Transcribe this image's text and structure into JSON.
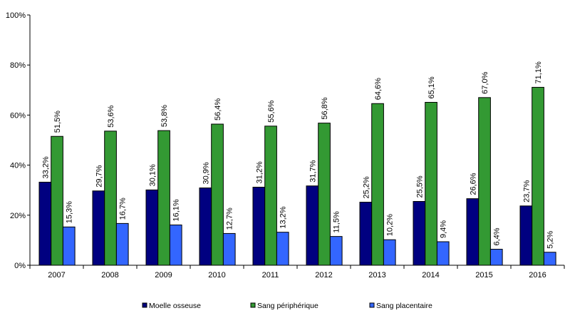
{
  "chart_data": {
    "type": "bar",
    "title": "",
    "xlabel": "",
    "ylabel": "",
    "ylim": [
      0,
      100
    ],
    "yticks": [
      "0%",
      "20%",
      "40%",
      "60%",
      "80%",
      "100%"
    ],
    "grid": false,
    "legend_position": "bottom",
    "categories": [
      "2007",
      "2008",
      "2009",
      "2010",
      "2011",
      "2012",
      "2013",
      "2014",
      "2015",
      "2016"
    ],
    "series": [
      {
        "name": "Moelle osseuse",
        "color": "#000080",
        "values": [
          33.2,
          29.7,
          30.1,
          30.9,
          31.2,
          31.7,
          25.2,
          25.5,
          26.6,
          23.7
        ],
        "labels": [
          "33,2%",
          "29,7%",
          "30,1%",
          "30,9%",
          "31,2%",
          "31,7%",
          "25,2%",
          "25,5%",
          "26,6%",
          "23,7%"
        ]
      },
      {
        "name": "Sang périphérique",
        "color": "#339933",
        "values": [
          51.5,
          53.6,
          53.8,
          56.4,
          55.6,
          56.8,
          64.6,
          65.1,
          67.0,
          71.1
        ],
        "labels": [
          "51,5%",
          "53,6%",
          "53,8%",
          "56,4%",
          "55,6%",
          "56,8%",
          "64,6%",
          "65,1%",
          "67,0%",
          "71,1%"
        ]
      },
      {
        "name": "Sang placentaire",
        "color": "#3366FF",
        "values": [
          15.3,
          16.7,
          16.1,
          12.7,
          13.2,
          11.5,
          10.2,
          9.4,
          6.4,
          5.2
        ],
        "labels": [
          "15,3%",
          "16,7%",
          "16,1%",
          "12,7%",
          "13,2%",
          "11,5%",
          "10,2%",
          "9,4%",
          "6,4%",
          "5,2%"
        ]
      }
    ]
  }
}
